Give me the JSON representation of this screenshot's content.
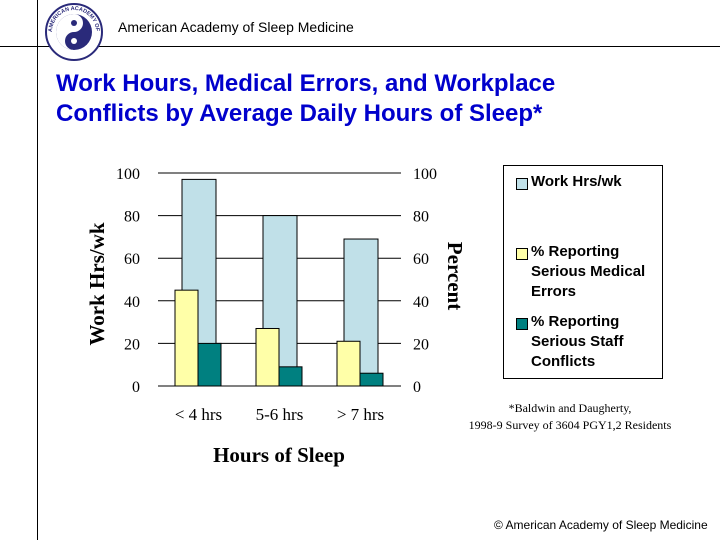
{
  "header": {
    "org": "American Academy of Sleep Medicine",
    "logo_text": "AMERICAN ACADEMY OF SLEEP MEDICINE"
  },
  "title": {
    "line1": "Work Hours, Medical Errors, and Workplace",
    "line2": "Conflicts by Average Daily Hours of Sleep*"
  },
  "chart_data": {
    "type": "bar",
    "categories": [
      "< 4 hrs",
      "5-6 hrs",
      "> 7 hrs"
    ],
    "series": [
      {
        "name": "Work Hrs/wk",
        "values": [
          97,
          80,
          69
        ],
        "color": "#c0e0e8",
        "axis": "left"
      },
      {
        "name": "% Reporting Serious Medical Errors",
        "values": [
          45,
          27,
          21
        ],
        "color": "#ffffa8",
        "axis": "right"
      },
      {
        "name": "% Reporting Serious Staff Conflicts",
        "values": [
          20,
          9,
          6
        ],
        "color": "#008080",
        "axis": "right"
      }
    ],
    "xlabel": "Hours of Sleep",
    "ylabel": "Work Hrs/wk",
    "y2label": "Percent",
    "ylim": [
      0,
      100
    ],
    "y2lim": [
      0,
      100
    ],
    "yticks": [
      "0",
      "20",
      "40",
      "60",
      "80",
      "100"
    ],
    "y2ticks": [
      "0",
      "20",
      "40",
      "60",
      "80",
      "100"
    ],
    "grid": true,
    "legend_position": "right"
  },
  "legend": {
    "items": [
      {
        "label": "Work Hrs/wk"
      },
      {
        "label": "% Reporting Serious Medical Errors"
      },
      {
        "label": "% Reporting Serious Staff Conflicts"
      }
    ]
  },
  "footnote": {
    "line1": "*Baldwin and Daugherty,",
    "line2": "1998-9 Survey of 3604 PGY1,2 Residents"
  },
  "footer": {
    "copyright": "© American Academy of Sleep Medicine"
  }
}
